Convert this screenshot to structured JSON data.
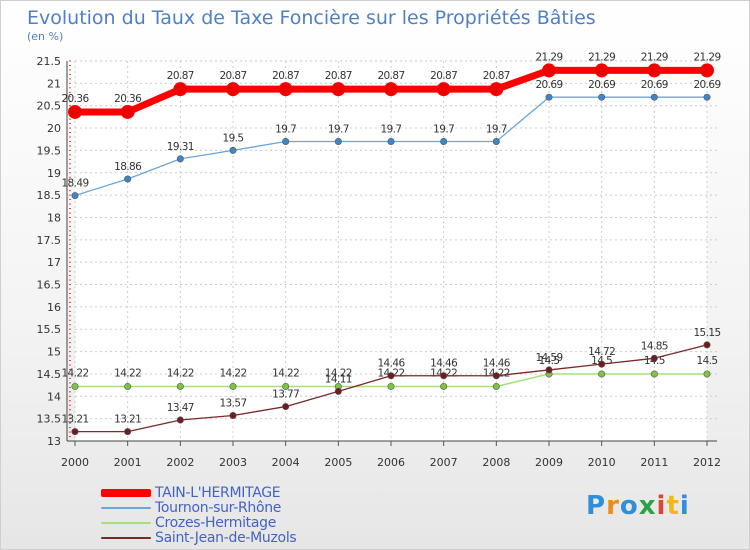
{
  "title": "Evolution du Taux de Taxe Foncière sur les Propriétés Bâties",
  "subtitle": "(en %)",
  "logo": {
    "text": "Proxiti",
    "colors": [
      "#2f8fd8",
      "#f08a1c",
      "#2f8fd8",
      "#2aa24a",
      "#d9463a",
      "#f0b81c",
      "#2f8fd8"
    ]
  },
  "chart_data": {
    "type": "line",
    "x": [
      "2000",
      "2001",
      "2002",
      "2003",
      "2004",
      "2005",
      "2006",
      "2007",
      "2008",
      "2009",
      "2010",
      "2011",
      "2012"
    ],
    "ylim": [
      13,
      21.5
    ],
    "yticks": [
      "13",
      "13.5",
      "14",
      "14.5",
      "15",
      "15.5",
      "16",
      "16.5",
      "17",
      "17.5",
      "18",
      "18.5",
      "19",
      "19.5",
      "20",
      "20.5",
      "21",
      "21.5"
    ],
    "grid": true,
    "legend_position": "bottom-left",
    "series": [
      {
        "name": "TAIN-L'HERMITAGE",
        "color": "#ff0000",
        "width": 7,
        "marker_color": "#ee0000",
        "values": [
          20.36,
          20.36,
          20.87,
          20.87,
          20.87,
          20.87,
          20.87,
          20.87,
          20.87,
          21.29,
          21.29,
          21.29,
          21.29
        ],
        "labels": [
          "20.36",
          "20.36",
          "20.87",
          "20.87",
          "20.87",
          "20.87",
          "20.87",
          "20.87",
          "20.87",
          "21.29",
          "21.29",
          "21.29",
          "21.29"
        ]
      },
      {
        "name": "Tournon-sur-Rhône",
        "color": "#6aa6d8",
        "width": 1.3,
        "marker_color": "#3f86c8",
        "values": [
          18.49,
          18.86,
          19.31,
          19.5,
          19.7,
          19.7,
          19.7,
          19.7,
          19.7,
          20.69,
          20.69,
          20.69,
          20.69
        ],
        "labels": [
          "18.49",
          "18.86",
          "19.31",
          "19.5",
          "19.7",
          "19.7",
          "19.7",
          "19.7",
          "19.7",
          "20.69",
          "20.69",
          "20.69",
          "20.69"
        ]
      },
      {
        "name": "Crozes-Hermitage",
        "color": "#a6e07a",
        "width": 1.5,
        "marker_color": "#7cc443",
        "values": [
          14.22,
          14.22,
          14.22,
          14.22,
          14.22,
          14.22,
          14.22,
          14.22,
          14.22,
          14.5,
          14.5,
          14.5,
          14.5
        ],
        "labels": [
          "14.22",
          "14.22",
          "14.22",
          "14.22",
          "14.22",
          "14.22",
          "14.22",
          "14.22",
          "14.22",
          "14.5",
          "14.5",
          "14.5",
          "14.5"
        ]
      },
      {
        "name": "Saint-Jean-de-Muzols",
        "color": "#7a2a2a",
        "width": 1.3,
        "marker_color": "#6e1e1e",
        "values": [
          13.21,
          13.21,
          13.47,
          13.57,
          13.77,
          14.11,
          14.46,
          14.46,
          14.46,
          14.59,
          14.72,
          14.85,
          15.15
        ],
        "labels": [
          "13.21",
          "13.21",
          "13.47",
          "13.57",
          "13.77",
          "14.11",
          "14.46",
          "14.46",
          "14.46",
          "14.59",
          "14.72",
          "14.85",
          "15.15"
        ]
      }
    ]
  }
}
